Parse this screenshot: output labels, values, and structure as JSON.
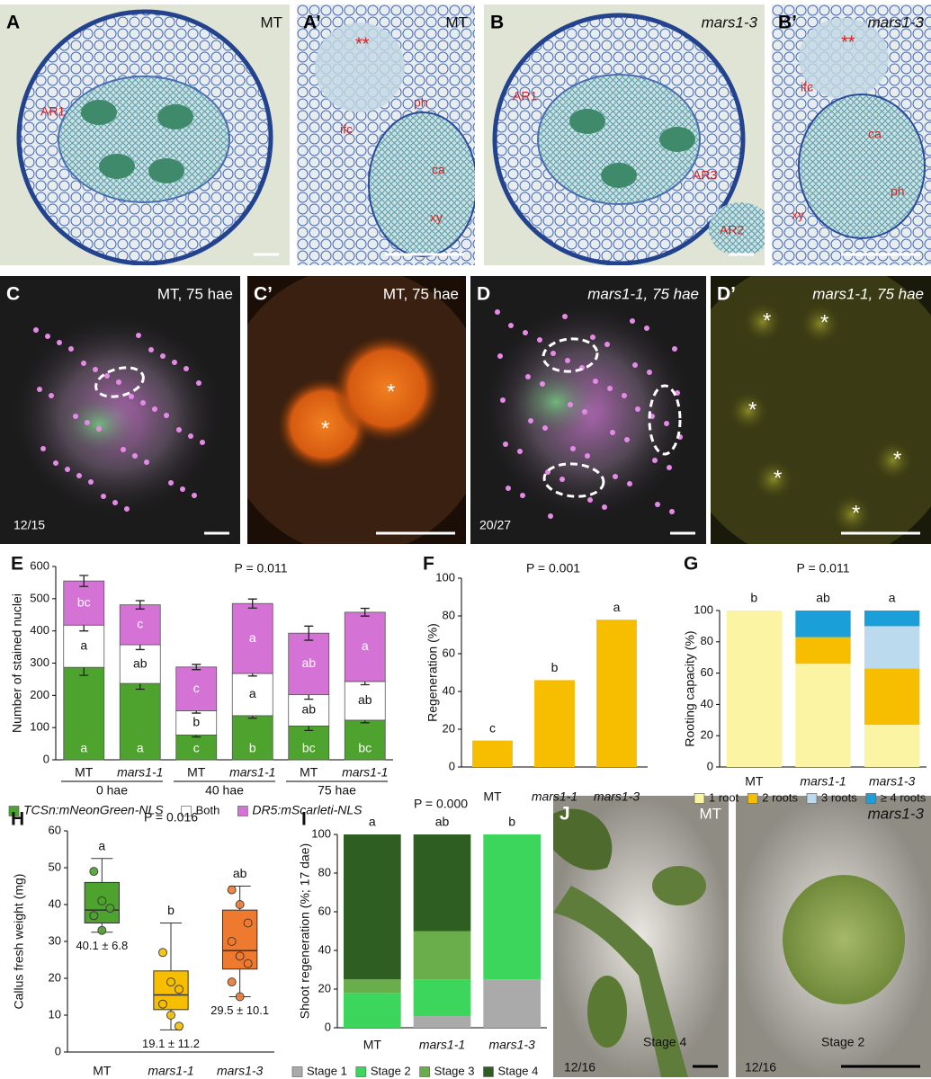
{
  "photos": [
    {
      "label": "A",
      "caption": "MT",
      "italic": false,
      "annotations": [
        "AR1"
      ]
    },
    {
      "label": "A’",
      "caption": "MT",
      "italic": false,
      "annotations": [
        "**",
        "ifc",
        "ph",
        "ca",
        "xy"
      ]
    },
    {
      "label": "B",
      "caption": "mars1-3",
      "italic": true,
      "annotations": [
        "AR1",
        "AR3",
        "AR2"
      ]
    },
    {
      "label": "B’",
      "caption": "mars1-3",
      "italic": true,
      "annotations": [
        "**",
        "ifc",
        "ca",
        "ph",
        "xy"
      ]
    },
    {
      "label": "C",
      "caption": "MT, 75 hae",
      "italic": false,
      "annotations": [
        "12/15"
      ]
    },
    {
      "label": "C’",
      "caption": "MT, 75 hae",
      "italic": false,
      "annotations": [
        "*",
        "*"
      ]
    },
    {
      "label": "D",
      "caption": "mars1-1, 75 hae",
      "italic": true,
      "annotations": [
        "20/27"
      ]
    },
    {
      "label": "D’",
      "caption": "mars1-1, 75 hae",
      "italic": true,
      "annotations": [
        "*",
        "*",
        "*",
        "*",
        "*",
        "*"
      ]
    },
    {
      "label": "J",
      "caption": "MT",
      "italic": false,
      "annotations": [
        "Stage 4",
        "12/16"
      ]
    },
    {
      "caption": "mars1-3",
      "italic": true,
      "annotations": [
        "Stage 2",
        "12/16"
      ]
    }
  ],
  "chart_data": [
    {
      "panel": "E",
      "type": "stacked_bar",
      "annotation": "P = 0.011",
      "ylabel": "Number of stained nuclei",
      "ylim": [
        0,
        600
      ],
      "yticks": [
        0,
        100,
        200,
        300,
        400,
        500,
        600
      ],
      "categories": [
        "MT",
        "mars1-1",
        "MT",
        "mars1-1",
        "MT",
        "mars1-1"
      ],
      "italic": [
        false,
        true,
        false,
        true,
        false,
        true
      ],
      "groups": [
        "0 hae",
        "40 hae",
        "75 hae"
      ],
      "series": [
        {
          "name": "TCSn:mNeonGreen-NLS",
          "color": "#4ea22e",
          "values": [
            287,
            237,
            77,
            137,
            105,
            123
          ],
          "errors": [
            25,
            18,
            6,
            8,
            14,
            8
          ],
          "letters": [
            "a",
            "a",
            "c",
            "b",
            "bc",
            "bc"
          ]
        },
        {
          "name": "Both",
          "color": "#ffffff",
          "values": [
            131,
            120,
            75,
            131,
            97,
            120
          ],
          "errors": [
            18,
            15,
            7,
            8,
            14,
            10
          ],
          "letters": [
            "a",
            "ab",
            "b",
            "a",
            "ab",
            "ab"
          ]
        },
        {
          "name": "DR5:mScarleti-NLS",
          "color": "#d472d6",
          "values": [
            137,
            124,
            136,
            217,
            191,
            215
          ],
          "errors": [
            17,
            13,
            8,
            14,
            22,
            12
          ],
          "letters": [
            "bc",
            "c",
            "c",
            "a",
            "ab",
            "a"
          ]
        }
      ],
      "legend": "bottom"
    },
    {
      "panel": "F",
      "type": "bar",
      "annotation": "P = 0.001",
      "ylabel": "Regeneration (%)",
      "ylim": [
        0,
        100
      ],
      "yticks": [
        0,
        20,
        40,
        60,
        80,
        100
      ],
      "categories": [
        "MT",
        "mars1-1",
        "mars1-3"
      ],
      "italic": [
        false,
        true,
        true
      ],
      "values": [
        14,
        46,
        78
      ],
      "letters": [
        "c",
        "b",
        "a"
      ],
      "color": "#f7be00"
    },
    {
      "panel": "G",
      "type": "stacked_bar",
      "annotation": "P = 0.011",
      "ylabel": "Rooting capacity (%)",
      "ylim": [
        0,
        100
      ],
      "yticks": [
        0,
        20,
        40,
        60,
        80,
        100
      ],
      "categories": [
        "MT",
        "mars1-1",
        "mars1-3"
      ],
      "italic": [
        false,
        true,
        true
      ],
      "letters": [
        "b",
        "ab",
        "a"
      ],
      "series": [
        {
          "name": "1 root",
          "color": "#fbf4a2",
          "values": [
            100,
            66,
            27
          ]
        },
        {
          "name": "2 roots",
          "color": "#f7be00",
          "values": [
            0,
            17,
            36
          ]
        },
        {
          "name": "3 roots",
          "color": "#bcdaee",
          "values": [
            0,
            0,
            27
          ]
        },
        {
          "name": "≥ 4 roots",
          "color": "#1a9fd8",
          "values": [
            0,
            17,
            10
          ]
        }
      ],
      "legend": "bottom"
    },
    {
      "panel": "H",
      "type": "box",
      "annotation": "P = 0.016",
      "ylabel": "Callus fresh weight (mg)",
      "ylim": [
        0,
        60
      ],
      "yticks": [
        0,
        10,
        20,
        30,
        40,
        50,
        60
      ],
      "categories": [
        "MT",
        "mars1-1",
        "mars1-3"
      ],
      "italic": [
        false,
        true,
        true
      ],
      "letters": [
        "a",
        "b",
        "ab"
      ],
      "boxes": [
        {
          "color": "#4ea22e",
          "min": 32.5,
          "q1": 35,
          "median": 38.5,
          "q3": 46,
          "max": 52.5,
          "points": [
            49,
            41,
            39,
            37,
            33
          ],
          "label": "40.1 ± 6.8"
        },
        {
          "color": "#f7be00",
          "min": 6,
          "q1": 11.5,
          "median": 15.5,
          "q3": 22,
          "max": 35,
          "points": [
            27,
            19,
            17,
            13,
            10,
            7
          ],
          "label": "19.1 ± 11.2"
        },
        {
          "color": "#ee7a30",
          "min": 15,
          "q1": 22.5,
          "median": 27.5,
          "q3": 38.5,
          "max": 45,
          "points": [
            44,
            40,
            35,
            30,
            26,
            24,
            19,
            15
          ],
          "label": "29.5 ± 10.1"
        }
      ]
    },
    {
      "panel": "I",
      "type": "stacked_bar",
      "annotation": "P = 0.000",
      "ylabel": "Shoot regeneration (%; 17 dae)",
      "ylim": [
        0,
        100
      ],
      "yticks": [
        0,
        20,
        40,
        60,
        80,
        100
      ],
      "categories": [
        "MT",
        "mars1-1",
        "mars1-3"
      ],
      "italic": [
        false,
        true,
        true
      ],
      "letters": [
        "a",
        "ab",
        "b"
      ],
      "series": [
        {
          "name": "Stage 1",
          "color": "#aaaaaa",
          "values": [
            0,
            6,
            25
          ]
        },
        {
          "name": "Stage 2",
          "color": "#3dd65c",
          "values": [
            18,
            19,
            75
          ]
        },
        {
          "name": "Stage 3",
          "color": "#6aae4c",
          "values": [
            7,
            25,
            0
          ]
        },
        {
          "name": "Stage 4",
          "color": "#2e5e22",
          "values": [
            75,
            50,
            0
          ]
        }
      ],
      "legend": "bottom"
    }
  ]
}
